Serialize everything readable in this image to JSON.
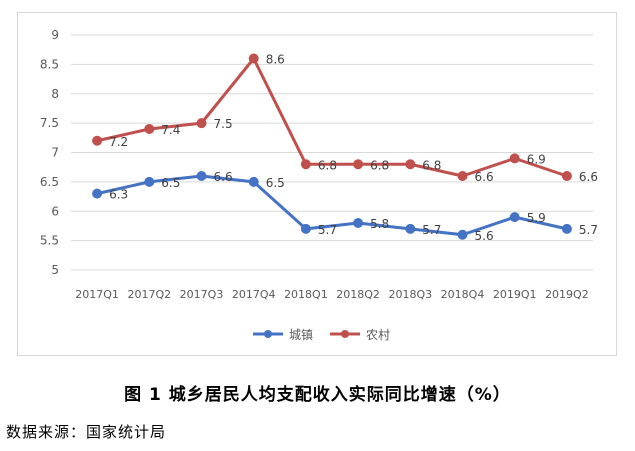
{
  "chart_data": {
    "type": "line",
    "title": "",
    "xlabel": "",
    "ylabel": "",
    "categories": [
      "2017Q1",
      "2017Q2",
      "2017Q3",
      "2017Q4",
      "2018Q1",
      "2018Q2",
      "2018Q3",
      "2018Q4",
      "2019Q1",
      "2019Q2"
    ],
    "ylim": [
      5,
      9
    ],
    "yticks": [
      "5",
      "5.5",
      "6",
      "6.5",
      "7",
      "7.5",
      "8",
      "8.5",
      "9"
    ],
    "grid": true,
    "legend_position": "bottom",
    "series": [
      {
        "name": "城镇",
        "color": "#4472c4",
        "values": [
          6.3,
          6.5,
          6.6,
          6.5,
          5.7,
          5.8,
          5.7,
          5.6,
          5.9,
          5.7
        ],
        "labels": [
          "6.3",
          "6.5",
          "6.6",
          "6.5",
          "5.7",
          "5.8",
          "5.7",
          "5.6",
          "5.9",
          "5.7"
        ]
      },
      {
        "name": "农村",
        "color": "#c0504d",
        "values": [
          7.2,
          7.4,
          7.5,
          8.6,
          6.8,
          6.8,
          6.8,
          6.6,
          6.9,
          6.6
        ],
        "labels": [
          "7.2",
          "7.4",
          "7.5",
          "8.6",
          "6.8",
          "6.8",
          "6.8",
          "6.6",
          "6.9",
          "6.6"
        ]
      }
    ]
  },
  "caption": "图 1  城乡居民人均支配收入实际同比增速（%）",
  "source": "数据来源：国家统计局"
}
